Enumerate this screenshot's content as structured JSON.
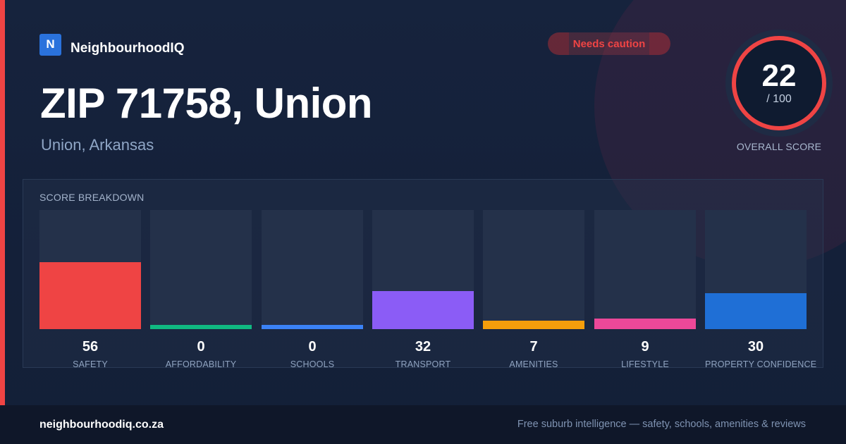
{
  "brand": {
    "logo_letter": "N",
    "name": "NeighbourhoodIQ"
  },
  "badge": {
    "label": "Needs caution",
    "color": "#ef4444"
  },
  "header": {
    "title": "ZIP 71758, Union",
    "subtitle": "Union, Arkansas"
  },
  "overall": {
    "score": "22",
    "max": "/ 100",
    "label": "OVERALL SCORE",
    "progress": 0.22
  },
  "breakdown": {
    "heading": "SCORE BREAKDOWN",
    "items": [
      {
        "value": "56",
        "label": "SAFETY",
        "color": "#ef4444",
        "fill": 0.56
      },
      {
        "value": "0",
        "label": "AFFORDABILITY",
        "color": "#10b981",
        "fill": 0
      },
      {
        "value": "0",
        "label": "SCHOOLS",
        "color": "#3b82f6",
        "fill": 0
      },
      {
        "value": "32",
        "label": "TRANSPORT",
        "color": "#8b5cf6",
        "fill": 0.32
      },
      {
        "value": "7",
        "label": "AMENITIES",
        "color": "#f59e0b",
        "fill": 0.07
      },
      {
        "value": "9",
        "label": "LIFESTYLE",
        "color": "#ec4899",
        "fill": 0.09
      },
      {
        "value": "30",
        "label": "PROPERTY CONFIDENCE",
        "color": "#1f6fd6",
        "fill": 0.3
      }
    ]
  },
  "footer": {
    "url": "neighbourhoodiq.co.za",
    "tagline": "Free suburb intelligence — safety, schools, amenities & reviews"
  }
}
